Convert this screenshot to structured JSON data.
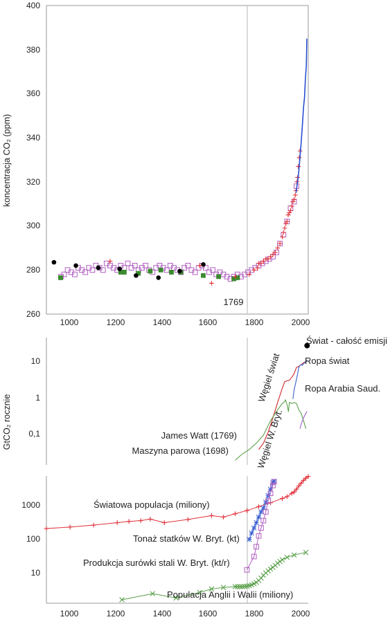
{
  "chart_data": [
    {
      "id": "co2",
      "type": "scatter",
      "ylabel": "koncentracja CO₂ (ppm)",
      "xlim": [
        900,
        2010
      ],
      "ylim": [
        260,
        400
      ],
      "y_ticks": [
        260,
        280,
        300,
        320,
        340,
        360,
        380,
        400
      ],
      "x_ticks": [
        1000,
        1200,
        1400,
        1600,
        1800,
        2000
      ],
      "grid": false,
      "vline": {
        "x": 1769,
        "label": "1769"
      },
      "colors": {
        "law_dome_purple": "#b05ec0",
        "siple_green": "#3a8a2e",
        "black_circles": "#000000",
        "ice_red": "#e0303a",
        "mauna_loa_blue": "#2a4fd0"
      },
      "series": [
        {
          "marker": "square-open",
          "color": "#b05ec0",
          "x": [
            962,
            975,
            990,
            1005,
            1020,
            1035,
            1050,
            1065,
            1080,
            1095,
            1110,
            1125,
            1140,
            1155,
            1170,
            1185,
            1200,
            1215,
            1230,
            1245,
            1260,
            1275,
            1290,
            1305,
            1320,
            1335,
            1350,
            1365,
            1380,
            1395,
            1410,
            1425,
            1440,
            1455,
            1470,
            1485,
            1500,
            1515,
            1530,
            1545,
            1560,
            1575,
            1590,
            1605,
            1620,
            1635,
            1650,
            1665,
            1680,
            1695,
            1710,
            1725,
            1740,
            1755,
            1770,
            1785,
            1800,
            1815,
            1830,
            1845,
            1860,
            1875,
            1890,
            1905,
            1920,
            1935,
            1950,
            1960
          ],
          "y": [
            277,
            278,
            280,
            279,
            278,
            281,
            280,
            279,
            281,
            280,
            282,
            281,
            280,
            283,
            282,
            281,
            280,
            282,
            281,
            283,
            281,
            282,
            280,
            281,
            282,
            280,
            279,
            281,
            282,
            281,
            280,
            282,
            281,
            280,
            279,
            281,
            282,
            280,
            279,
            281,
            282,
            281,
            279,
            280,
            278,
            279,
            278,
            277,
            276,
            277,
            278,
            277,
            278,
            279,
            280,
            281,
            282,
            283,
            284,
            285,
            286,
            288,
            292,
            296,
            302,
            308,
            311,
            318
          ]
        },
        {
          "marker": "square-filled",
          "color": "#3a8a2e",
          "x": [
            960,
            1215,
            1230,
            1290,
            1340,
            1385,
            1430,
            1470,
            1565,
            1630,
            1695,
            1710
          ],
          "y": [
            276.5,
            279,
            279,
            278.5,
            279.5,
            280,
            279,
            279,
            277.5,
            277,
            276,
            276.5
          ]
        },
        {
          "marker": "circle-filled",
          "color": "#000000",
          "x": [
            932,
            1025,
            1120,
            1210,
            1280,
            1375,
            1465,
            1565
          ],
          "y": [
            283.5,
            282,
            281,
            280.5,
            277.5,
            276.5,
            279.5,
            282.5
          ]
        },
        {
          "marker": "plus",
          "color": "#e0303a",
          "x": [
            1170,
            1550,
            1600,
            1700,
            1760,
            1780,
            1795,
            1800,
            1810,
            1820,
            1830,
            1840,
            1850,
            1860,
            1870,
            1880,
            1890,
            1900,
            1905,
            1910,
            1915,
            1920,
            1925,
            1930,
            1935,
            1940,
            1945,
            1950,
            1955,
            1958,
            1962,
            1965,
            1968,
            1972,
            1975
          ],
          "y": [
            284,
            282,
            274,
            277,
            278,
            280,
            281,
            283,
            283,
            284,
            285,
            285,
            286,
            287,
            288,
            290,
            292,
            295,
            297,
            299,
            301,
            302,
            305,
            306,
            307,
            309,
            311,
            312,
            314,
            316,
            320,
            322,
            327,
            331,
            334
          ]
        },
        {
          "marker": "line",
          "color": "#2a4fd0",
          "x": [
            1958,
            1962,
            1966,
            1970,
            1974,
            1978,
            1982,
            1986,
            1990,
            1994,
            1998,
            2002,
            2004
          ],
          "y": [
            315,
            318,
            321,
            325,
            330,
            335,
            341,
            347,
            354,
            358,
            367,
            373,
            385
          ]
        }
      ]
    },
    {
      "id": "emissions",
      "type": "line",
      "ylabel": "GtCO₂ rocznie",
      "y_scale": "log",
      "xlim": [
        900,
        2010
      ],
      "ylim": [
        0.015,
        50
      ],
      "y_tick_labels": [
        {
          "value": 0.1,
          "label": "0,1"
        },
        {
          "value": 1,
          "label": "1"
        },
        {
          "value": 10,
          "label": "10"
        }
      ],
      "grid": false,
      "vline": {
        "x": 1769
      },
      "annotations": [
        "James Watt (1769)",
        "Maszyna parowa (1698)"
      ],
      "colors": {
        "coal_world": "#cc2a2a",
        "oil_world": "#3a5fd0",
        "coal_uk": "#5aa04a",
        "oil_saudi": "#a060d0",
        "total": "#000000"
      },
      "series": [
        {
          "name": "Węgiel świat",
          "color": "#cc2a2a",
          "x": [
            1800,
            1820,
            1840,
            1860,
            1880,
            1900,
            1910,
            1920,
            1930,
            1940,
            1950,
            1960,
            1970,
            1980,
            1990,
            2000,
            2005
          ],
          "y": [
            0.04,
            0.06,
            0.12,
            0.3,
            0.8,
            2,
            3,
            3.2,
            3.3,
            4,
            5,
            7.5,
            8,
            9,
            10,
            11,
            12
          ]
        },
        {
          "name": "Ropa świat",
          "color": "#3a5fd0",
          "x": [
            1945,
            1950,
            1955,
            1960,
            1965,
            1970,
            1975,
            1980,
            1985,
            1990,
            1995,
            2000,
            2005
          ],
          "y": [
            1.0,
            1.8,
            2.5,
            3.5,
            5,
            7.5,
            8.5,
            9,
            8.5,
            9.5,
            10,
            11,
            12
          ]
        },
        {
          "name": "Węgiel W. Bryt.",
          "color": "#5aa04a",
          "x": [
            1700,
            1730,
            1760,
            1790,
            1820,
            1850,
            1880,
            1900,
            1910,
            1913,
            1920,
            1926,
            1930,
            1940,
            1950,
            1960,
            1970,
            1980,
            1990,
            2000
          ],
          "y": [
            0.02,
            0.03,
            0.04,
            0.06,
            0.1,
            0.25,
            0.5,
            0.75,
            0.85,
            0.95,
            0.7,
            0.45,
            0.8,
            0.75,
            0.8,
            0.75,
            0.5,
            0.4,
            0.25,
            0.15
          ]
        },
        {
          "name": "Ropa Arabia Saud.",
          "color": "#a060d0",
          "x": [
            1975,
            1980,
            1985,
            1990,
            1995,
            2000,
            2005
          ],
          "y": [
            0.15,
            0.2,
            0.25,
            0.3,
            0.35,
            0.4,
            0.45
          ]
        },
        {
          "name": "Świat - całość emisji",
          "color": "#000000",
          "x": [
            2005
          ],
          "y": [
            30
          ]
        }
      ]
    },
    {
      "id": "population",
      "type": "line",
      "y_scale": "log",
      "xlim": [
        900,
        2010
      ],
      "ylim": [
        2,
        7000
      ],
      "y_tick_labels": [
        {
          "value": 10,
          "label": "10"
        },
        {
          "value": 100,
          "label": "100"
        },
        {
          "value": 1000,
          "label": "1000"
        }
      ],
      "x_ticks": [
        1000,
        1200,
        1400,
        1600,
        1800,
        2000
      ],
      "grid": false,
      "vline": {
        "x": 1769
      },
      "colors": {
        "world_pop": "#e0303a",
        "uk_tonnage": "#3a5fd0",
        "uk_steel": "#b05ec0",
        "eng_wales_pop": "#5aa04a"
      },
      "series": [
        {
          "name": "Światowa populacja (miliony)",
          "color": "#e0303a",
          "marker": "plus",
          "x": [
            900,
            1000,
            1100,
            1200,
            1250,
            1300,
            1340,
            1400,
            1500,
            1600,
            1650,
            1700,
            1750,
            1800,
            1850,
            1900,
            1920,
            1940,
            1950,
            1960,
            1970,
            1980,
            1990,
            2000,
            2010
          ],
          "y": [
            240,
            265,
            300,
            350,
            380,
            400,
            440,
            350,
            430,
            550,
            500,
            620,
            760,
            980,
            1260,
            1650,
            1860,
            2300,
            2500,
            3000,
            3700,
            4400,
            5300,
            6100,
            6800
          ]
        },
        {
          "name": "Tonaż statków W. Bryt. (kt)",
          "color": "#3a5fd0",
          "marker": "star",
          "x": [
            1760,
            1770,
            1780,
            1790,
            1800,
            1810,
            1820,
            1830,
            1840,
            1850,
            1860,
            1865
          ],
          "y": [
            120,
            180,
            250,
            350,
            500,
            700,
            900,
            1300,
            2000,
            3000,
            4500,
            5000
          ]
        },
        {
          "name": "Produkcja surówki stali W. Bryt. (kt/r)",
          "color": "#b05ec0",
          "marker": "square-open",
          "x": [
            1750,
            1780,
            1790,
            1800,
            1810,
            1820,
            1830,
            1840,
            1850,
            1860,
            1865
          ],
          "y": [
            17,
            40,
            75,
            150,
            250,
            400,
            700,
            1400,
            2300,
            3800,
            4800
          ]
        },
        {
          "name": "Populacja Anglii i Walii (miliony)",
          "color": "#5aa04a",
          "marker": "cross",
          "x": [
            1100,
            1220,
            1350,
            1450,
            1550,
            1600,
            1650,
            1700,
            1710,
            1720,
            1730,
            1740,
            1750,
            1760,
            1770,
            1780,
            1790,
            1800,
            1810,
            1820,
            1830,
            1840,
            1850,
            1860,
            1870,
            1880,
            1890,
            1900,
            1920,
            1950,
            2000
          ],
          "y": [
            1.5,
            2.5,
            3.7,
            2.8,
            4,
            5,
            5.5,
            5.8,
            5.8,
            5.8,
            5.8,
            5.9,
            6,
            6.2,
            6.5,
            7,
            7.6,
            8.6,
            10,
            12,
            14,
            16,
            18,
            20,
            22.7,
            26,
            29,
            32.5,
            38,
            44,
            52
          ]
        }
      ]
    }
  ],
  "co2_panel": {
    "ylabel": "koncentracja CO₂ (ppm)",
    "vline_label": "1769",
    "y_tick_labels": [
      "260",
      "280",
      "300",
      "320",
      "340",
      "360",
      "380",
      "400"
    ],
    "x_tick_labels": [
      "1000",
      "1200",
      "1400",
      "1600",
      "1800",
      "2000"
    ]
  },
  "emissions_panel": {
    "ylabel": "GtCO₂ rocznie",
    "y_tick_labels": [
      "0,1",
      "1",
      "10"
    ],
    "labels": {
      "coal_world": "Węgiel świat",
      "coal_uk": "Węgiel W. Bryt.",
      "total": "Świat - całość emisji",
      "oil_world": "Ropa świat",
      "oil_saudi": "Ropa Arabia Saud.",
      "james_watt": "James Watt (1769)",
      "steam_engine": "Maszyna parowa (1698)"
    }
  },
  "population_panel": {
    "y_tick_labels": [
      "10",
      "100",
      "1000"
    ],
    "x_tick_labels": [
      "1000",
      "1200",
      "1400",
      "1600",
      "1800",
      "2000"
    ],
    "labels": {
      "world_pop": "Światowa populacja (miliony)",
      "tonnage": "Tonaż statków W. Bryt. (kt)",
      "steel": "Produkcja surówki stali W. Bryt. (kt/r)",
      "eng_wales": "Populacja Anglii i Walii (miliony)"
    }
  }
}
